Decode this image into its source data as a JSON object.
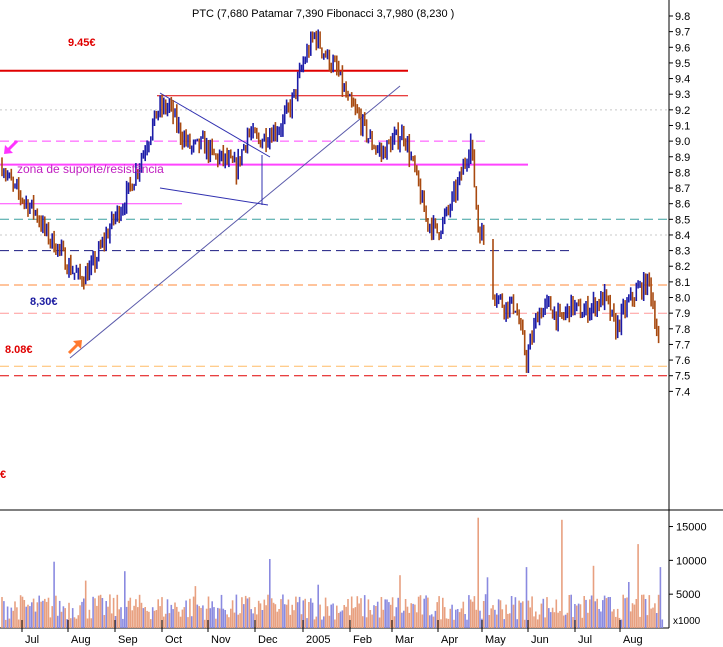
{
  "chart_data": {
    "type": "line",
    "title": "PTC (7,680 Patamar 7,390 Fibonacci 3,7,980 (8,230 )",
    "ylim": [
      7.3,
      9.85
    ],
    "yticks": [
      "9.8",
      "9.7",
      "9.6",
      "9.5",
      "9.4",
      "9.3",
      "9.2",
      "9.1",
      "9.0",
      "8.9",
      "8.8",
      "8.7",
      "8.6",
      "8.5",
      "8.4",
      "8.3",
      "8.2",
      "8.1",
      "8.0",
      "7.9",
      "7.8",
      "7.7",
      "7.6",
      "7.5",
      "7.4"
    ],
    "x_months": [
      "Jul",
      "Aug",
      "Sep",
      "Oct",
      "Nov",
      "Dec",
      "2005",
      "Feb",
      "Mar",
      "Apr",
      "May",
      "Jun",
      "Jul",
      "Aug"
    ],
    "price_anchors": [
      [
        0,
        8.85
      ],
      [
        6,
        8.7
      ],
      [
        12,
        8.62
      ],
      [
        18,
        8.55
      ],
      [
        24,
        8.4
      ],
      [
        30,
        8.32
      ],
      [
        36,
        8.2
      ],
      [
        42,
        8.12
      ],
      [
        48,
        8.18
      ],
      [
        54,
        8.34
      ],
      [
        60,
        8.5
      ],
      [
        66,
        8.62
      ],
      [
        72,
        8.8
      ],
      [
        78,
        9.0
      ],
      [
        84,
        9.2
      ],
      [
        90,
        9.22
      ],
      [
        96,
        9.05
      ],
      [
        102,
        8.95
      ],
      [
        108,
        8.98
      ],
      [
        114,
        8.9
      ],
      [
        120,
        8.88
      ],
      [
        126,
        8.82
      ],
      [
        132,
        9.05
      ],
      [
        138,
        9.0
      ],
      [
        144,
        9.05
      ],
      [
        150,
        9.1
      ],
      [
        156,
        9.25
      ],
      [
        162,
        9.5
      ],
      [
        168,
        9.68
      ],
      [
        174,
        9.55
      ],
      [
        180,
        9.45
      ],
      [
        186,
        9.25
      ],
      [
        192,
        9.15
      ],
      [
        198,
        9.0
      ],
      [
        204,
        8.92
      ],
      [
        210,
        9.0
      ],
      [
        216,
        9.05
      ],
      [
        222,
        8.8
      ],
      [
        228,
        8.5
      ],
      [
        234,
        8.42
      ],
      [
        240,
        8.55
      ],
      [
        246,
        8.75
      ],
      [
        252,
        9.0
      ],
      [
        256,
        8.45
      ],
      [
        260,
        8.35
      ],
      [
        264,
        8.05
      ],
      [
        270,
        7.95
      ],
      [
        276,
        7.95
      ],
      [
        282,
        7.6
      ],
      [
        288,
        7.9
      ],
      [
        294,
        7.95
      ],
      [
        300,
        7.85
      ],
      [
        306,
        7.95
      ],
      [
        312,
        7.9
      ],
      [
        318,
        7.95
      ],
      [
        324,
        8.0
      ],
      [
        330,
        7.8
      ],
      [
        336,
        7.95
      ],
      [
        342,
        8.05
      ],
      [
        348,
        8.1
      ],
      [
        352,
        7.8
      ],
      [
        354,
        7.6
      ]
    ],
    "volume_ylim": [
      0,
      17000
    ],
    "volume_ticks": [
      "15000",
      "10000",
      "5000"
    ],
    "volume_unit": "x1000",
    "horizontal_levels": [
      {
        "y": 9.45,
        "color": "#e00000",
        "style": "solid",
        "width": 2
      },
      {
        "y": 9.29,
        "color": "#e00000",
        "style": "solid",
        "width": 1
      },
      {
        "y": 9.0,
        "color": "#ff44ff",
        "style": "dashed",
        "width": 1
      },
      {
        "y": 8.85,
        "color": "#ff44ff",
        "style": "solid",
        "width": 2
      },
      {
        "y": 8.6,
        "color": "#ff44ff",
        "style": "solid",
        "width": 1
      },
      {
        "y": 8.5,
        "color": "#3aa0a0",
        "style": "dashed",
        "width": 1
      },
      {
        "y": 8.3,
        "color": "#1a1a80",
        "style": "dashed",
        "width": 1
      },
      {
        "y": 8.08,
        "color": "#ff8a3a",
        "style": "dashed",
        "width": 1
      },
      {
        "y": 7.9,
        "color": "#ff9999",
        "style": "dashed",
        "width": 1
      },
      {
        "y": 7.56,
        "color": "#ffbb66",
        "style": "dashed",
        "width": 1
      },
      {
        "y": 7.5,
        "color": "#e00000",
        "style": "dashed",
        "width": 1
      }
    ],
    "annotations": {
      "level_945": "9.45€",
      "level_830": "8,30€",
      "level_808": "8.08€",
      "level_euro": "€",
      "zone": "zona de suporte/resistência"
    }
  },
  "colors": {
    "price_up": "#1c1ca8",
    "price_down": "#a84a10",
    "volume_up": "#8a8ae0",
    "volume_down": "#e8a080",
    "trend": "#5a5aaa"
  }
}
